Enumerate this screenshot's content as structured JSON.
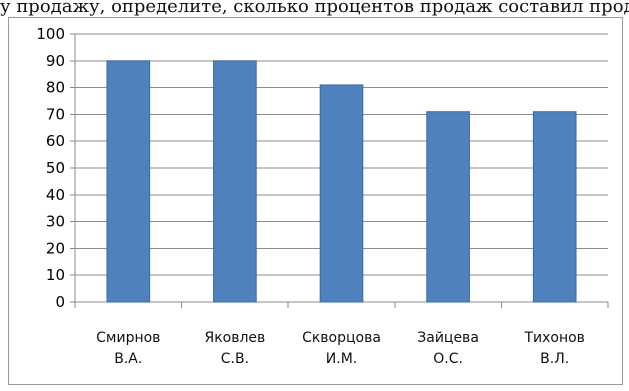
{
  "top_fragment": "у продажу, определите, сколько процентов продаж составил продавец, пр",
  "chart_data": {
    "type": "bar",
    "categories": [
      [
        "Смирнов",
        "В.А."
      ],
      [
        "Яковлев",
        "С.В."
      ],
      [
        "Скворцова",
        "И.М."
      ],
      [
        "Зайцева",
        "О.С."
      ],
      [
        "Тихонов",
        "В.Л."
      ]
    ],
    "values": [
      90,
      90,
      81,
      71,
      71
    ],
    "ylim": [
      0,
      100
    ],
    "yticks": [
      "0",
      "10",
      "20",
      "30",
      "40",
      "50",
      "60",
      "70",
      "80",
      "90",
      "100"
    ],
    "grid": true,
    "legend": "none",
    "title": "",
    "xlabel": "",
    "ylabel": "",
    "bar_color": "#4f81bd",
    "bar_edge_color": "#3d6aa0"
  }
}
